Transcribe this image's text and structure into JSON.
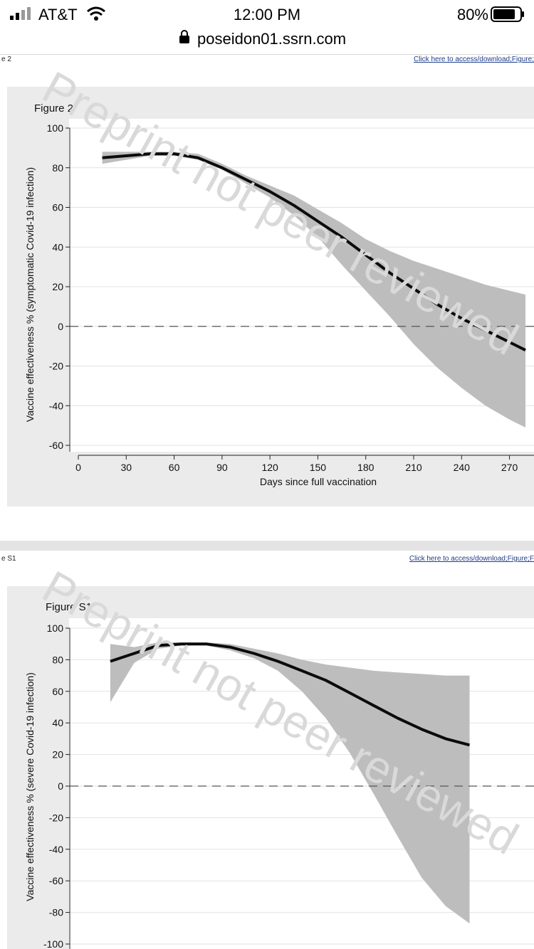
{
  "status_bar": {
    "carrier": "AT&T",
    "time": "12:00 PM",
    "battery": "80%"
  },
  "browser": {
    "url": "poseidon01.ssrn.com"
  },
  "watermark": "Preprint not peer reviewed",
  "sections": [
    {
      "label": "e 2",
      "link": "Click here to access/download;Figure;"
    },
    {
      "label": "e S1",
      "link": "Click here to access/download;Figure;F"
    }
  ],
  "chart_data": [
    {
      "type": "line",
      "title": "Figure 2",
      "xlabel": "Days since full vaccination",
      "ylabel": "Vaccine effectiveness % (symptomatic Covid-19 infection)",
      "xlim": [
        0,
        280
      ],
      "ylim": [
        -60,
        100
      ],
      "xticks": [
        0,
        30,
        60,
        90,
        120,
        150,
        180,
        210,
        240,
        270
      ],
      "yticks": [
        -60,
        -40,
        -20,
        0,
        20,
        40,
        60,
        80,
        100
      ],
      "reference_line": 0,
      "grid": true,
      "series": [
        {
          "x": [
            15,
            30,
            45,
            60,
            75,
            90,
            105,
            120,
            135,
            150,
            165,
            180,
            195,
            210,
            225,
            240,
            255,
            270,
            280
          ],
          "values": [
            85,
            86,
            87,
            87,
            85,
            80,
            74,
            68,
            61,
            53,
            45,
            36,
            27,
            19,
            11,
            4,
            -2,
            -8,
            -12
          ],
          "lower": [
            82,
            84,
            86,
            86,
            84,
            79,
            72,
            65,
            56,
            45,
            31,
            18,
            5,
            -9,
            -21,
            -31,
            -40,
            -47,
            -51
          ],
          "upper": [
            88,
            88,
            88,
            88,
            87,
            82,
            76,
            71,
            66,
            59,
            52,
            44,
            38,
            33,
            29,
            25,
            21,
            18,
            16
          ]
        }
      ]
    },
    {
      "type": "line",
      "title": "Figure S1",
      "xlabel": "",
      "ylabel": "Vaccine effectiveness % (severe Covid-19 infection)",
      "xlim": [
        0,
        280
      ],
      "ylim": [
        -100,
        100
      ],
      "xticks": [],
      "yticks": [
        -100,
        -80,
        -60,
        -40,
        -20,
        0,
        20,
        40,
        60,
        80,
        100
      ],
      "reference_line": 0,
      "grid": true,
      "series": [
        {
          "x": [
            20,
            35,
            50,
            65,
            80,
            95,
            110,
            125,
            140,
            155,
            170,
            185,
            200,
            215,
            230,
            245
          ],
          "values": [
            79,
            84,
            89,
            90,
            90,
            88,
            84,
            79,
            73,
            67,
            59,
            51,
            43,
            36,
            30,
            26
          ],
          "lower": [
            53,
            78,
            87,
            89,
            89,
            86,
            81,
            73,
            60,
            43,
            21,
            -5,
            -32,
            -58,
            -76,
            -87
          ],
          "upper": [
            90,
            88,
            91,
            91,
            91,
            90,
            87,
            84,
            80,
            77,
            75,
            73,
            72,
            71,
            70,
            70
          ]
        }
      ]
    }
  ]
}
